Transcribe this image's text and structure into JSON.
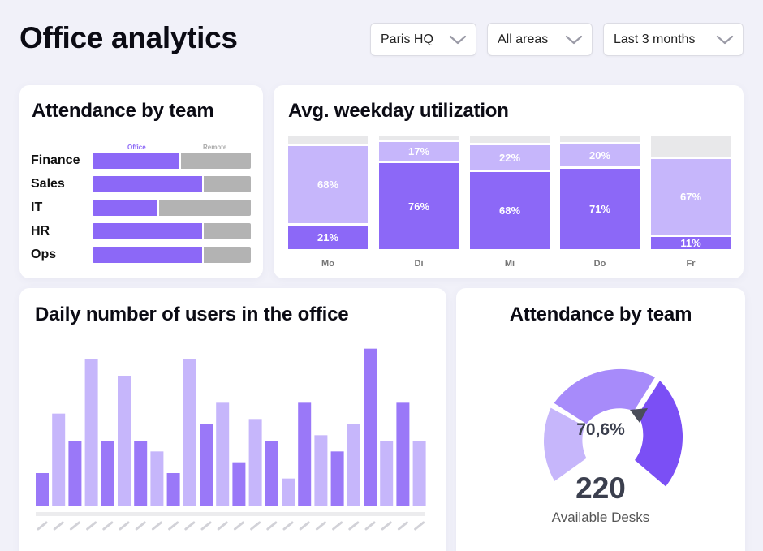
{
  "page": {
    "title": "Office analytics"
  },
  "filters": [
    {
      "label": "Paris HQ"
    },
    {
      "label": "All areas"
    },
    {
      "label": "Last 3 months"
    }
  ],
  "colors": {
    "accent": "#8c68f7",
    "accent_light": "#c6b6fb",
    "accent_mid": "#a78bfa",
    "accent_dark": "#7b4ff5",
    "remote_gray": "#b3b3b3",
    "empty_gray": "#e8e8ea"
  },
  "team_attendance": {
    "title": "Attendance by team",
    "legend": {
      "office": "Office",
      "remote": "Remote"
    },
    "teams": [
      {
        "name": "Finance",
        "office_share": 0.55
      },
      {
        "name": "Sales",
        "office_share": 0.69
      },
      {
        "name": "IT",
        "office_share": 0.41
      },
      {
        "name": "HR",
        "office_share": 0.69
      },
      {
        "name": "Ops",
        "office_share": 0.69
      }
    ]
  },
  "weekday_utilization": {
    "title": "Avg. weekday utilization",
    "days": [
      {
        "day": "Mo",
        "lower": "21%",
        "upper": "68%",
        "lower_value": 21,
        "upper_value": 68
      },
      {
        "day": "Di",
        "lower": "76%",
        "upper": "17%",
        "lower_value": 76,
        "upper_value": 17
      },
      {
        "day": "Mi",
        "lower": "68%",
        "upper": "22%",
        "lower_value": 68,
        "upper_value": 22
      },
      {
        "day": "Do",
        "lower": "71%",
        "upper": "20%",
        "lower_value": 71,
        "upper_value": 20
      },
      {
        "day": "Fr",
        "lower": "11%",
        "upper": "67%",
        "lower_value": 11,
        "upper_value": 67
      }
    ]
  },
  "daily_users": {
    "title": "Daily number of users in the office",
    "values": [
      6,
      17,
      12,
      27,
      12,
      24,
      12,
      10,
      6,
      27,
      15,
      19,
      8,
      16,
      12,
      5,
      19,
      13,
      10,
      15,
      29,
      12,
      19,
      12
    ],
    "ymax": 30
  },
  "desk_gauge": {
    "title": "Attendance by team",
    "percent": "70,6%",
    "value": "220",
    "label": "Available Desks"
  }
}
